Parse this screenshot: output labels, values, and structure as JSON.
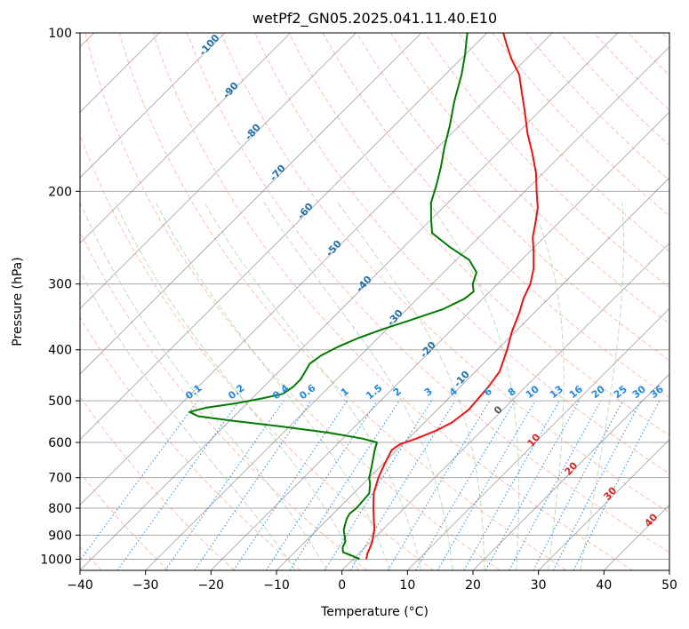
{
  "chart_data": {
    "type": "line",
    "title": "wetPf2_GN05.2025.041.11.40.E10",
    "xlabel": "Temperature (°C)",
    "ylabel": "Pressure (hPa)",
    "xlim": [
      -40,
      50
    ],
    "ylim": [
      1050,
      100
    ],
    "y_scale": "log",
    "x_ticks": [
      -40,
      -30,
      -20,
      -10,
      0,
      10,
      20,
      30,
      40,
      50
    ],
    "x_tick_labels": [
      "−40",
      "−30",
      "−20",
      "−10",
      "0",
      "10",
      "20",
      "30",
      "40",
      "50"
    ],
    "y_ticks": [
      100,
      200,
      300,
      400,
      500,
      600,
      700,
      800,
      900,
      1000
    ],
    "y_tick_labels": [
      "100",
      "200",
      "300",
      "400",
      "500",
      "600",
      "700",
      "800",
      "900",
      "1000"
    ],
    "grid": true,
    "dry_adiabat_labels": [
      "-100",
      "-90",
      "-80",
      "-70",
      "-60",
      "-50",
      "-40",
      "-30",
      "-20",
      "-10",
      "0",
      "10",
      "20",
      "30",
      "40"
    ],
    "mixing_ratio_labels": [
      "0.1",
      "0.2",
      "0.4",
      "0.6",
      "1",
      "1.5",
      "2",
      "3",
      "4",
      "6",
      "8",
      "10",
      "13",
      "16",
      "20",
      "25",
      "30",
      "36"
    ],
    "series": [
      {
        "role": "temperature",
        "color": "#ee1111",
        "points": [
          [
            1000,
            2
          ],
          [
            975,
            1.3
          ],
          [
            950,
            0.8
          ],
          [
            925,
            0.2
          ],
          [
            900,
            -0.6
          ],
          [
            875,
            -1.4
          ],
          [
            850,
            -2.5
          ],
          [
            800,
            -4.7
          ],
          [
            750,
            -6.9
          ],
          [
            700,
            -8.6
          ],
          [
            650,
            -10.0
          ],
          [
            620,
            -10.8
          ],
          [
            605,
            -10.4
          ],
          [
            590,
            -8.8
          ],
          [
            570,
            -7.0
          ],
          [
            550,
            -5.8
          ],
          [
            520,
            -5.2
          ],
          [
            500,
            -5.4
          ],
          [
            470,
            -5.7
          ],
          [
            440,
            -6.3
          ],
          [
            400,
            -8.5
          ],
          [
            370,
            -10.5
          ],
          [
            340,
            -12.3
          ],
          [
            320,
            -13.8
          ],
          [
            300,
            -15.0
          ],
          [
            280,
            -16.9
          ],
          [
            260,
            -19.5
          ],
          [
            245,
            -21.7
          ],
          [
            230,
            -23.5
          ],
          [
            215,
            -25.5
          ],
          [
            200,
            -28.2
          ],
          [
            185,
            -31.0
          ],
          [
            170,
            -34.5
          ],
          [
            155,
            -38.5
          ],
          [
            140,
            -42.5
          ],
          [
            130,
            -45.5
          ],
          [
            120,
            -48.7
          ],
          [
            112,
            -52.3
          ],
          [
            105,
            -55.3
          ],
          [
            100,
            -57.5
          ]
        ]
      },
      {
        "role": "dewpoint",
        "color": "#007a00",
        "points": [
          [
            1000,
            1.0
          ],
          [
            985,
            -0.7
          ],
          [
            970,
            -2.6
          ],
          [
            950,
            -3.4
          ],
          [
            925,
            -3.9
          ],
          [
            900,
            -5.0
          ],
          [
            880,
            -5.9
          ],
          [
            860,
            -6.5
          ],
          [
            840,
            -7.1
          ],
          [
            820,
            -7.5
          ],
          [
            800,
            -7.3
          ],
          [
            780,
            -7.4
          ],
          [
            750,
            -7.6
          ],
          [
            720,
            -8.9
          ],
          [
            700,
            -10.0
          ],
          [
            670,
            -11.2
          ],
          [
            640,
            -12.5
          ],
          [
            620,
            -13.4
          ],
          [
            605,
            -14.0
          ],
          [
            600,
            -14.2
          ],
          [
            590,
            -17.0
          ],
          [
            575,
            -23.0
          ],
          [
            560,
            -31.0
          ],
          [
            545,
            -40.0
          ],
          [
            535,
            -45.5
          ],
          [
            525,
            -47.5
          ],
          [
            515,
            -45.5
          ],
          [
            505,
            -41.5
          ],
          [
            495,
            -38.5
          ],
          [
            485,
            -36.0
          ],
          [
            470,
            -35.5
          ],
          [
            455,
            -35.5
          ],
          [
            440,
            -36.0
          ],
          [
            425,
            -36.5
          ],
          [
            410,
            -36.0
          ],
          [
            395,
            -34.8
          ],
          [
            380,
            -33.0
          ],
          [
            365,
            -30.5
          ],
          [
            350,
            -27.5
          ],
          [
            335,
            -24.5
          ],
          [
            320,
            -22.8
          ],
          [
            310,
            -22.5
          ],
          [
            300,
            -23.8
          ],
          [
            285,
            -25.0
          ],
          [
            270,
            -28.0
          ],
          [
            255,
            -33.0
          ],
          [
            240,
            -37.8
          ],
          [
            225,
            -40.2
          ],
          [
            210,
            -42.6
          ],
          [
            195,
            -44.4
          ],
          [
            180,
            -46.5
          ],
          [
            165,
            -49.0
          ],
          [
            150,
            -51.5
          ],
          [
            135,
            -54.5
          ],
          [
            120,
            -57.5
          ],
          [
            110,
            -60.0
          ],
          [
            100,
            -63.0
          ]
        ]
      }
    ]
  },
  "colors": {
    "isotherm": "#808080",
    "isobar": "#a8a8a8",
    "dry_adiabat": "#ff8a65",
    "moist_adiabat": "#8fc88f",
    "mixing_ratio": "#1e88e5",
    "dry_label": "#1f6ea8",
    "warm_label": "#dd2222",
    "freezing_label": "#555555"
  }
}
